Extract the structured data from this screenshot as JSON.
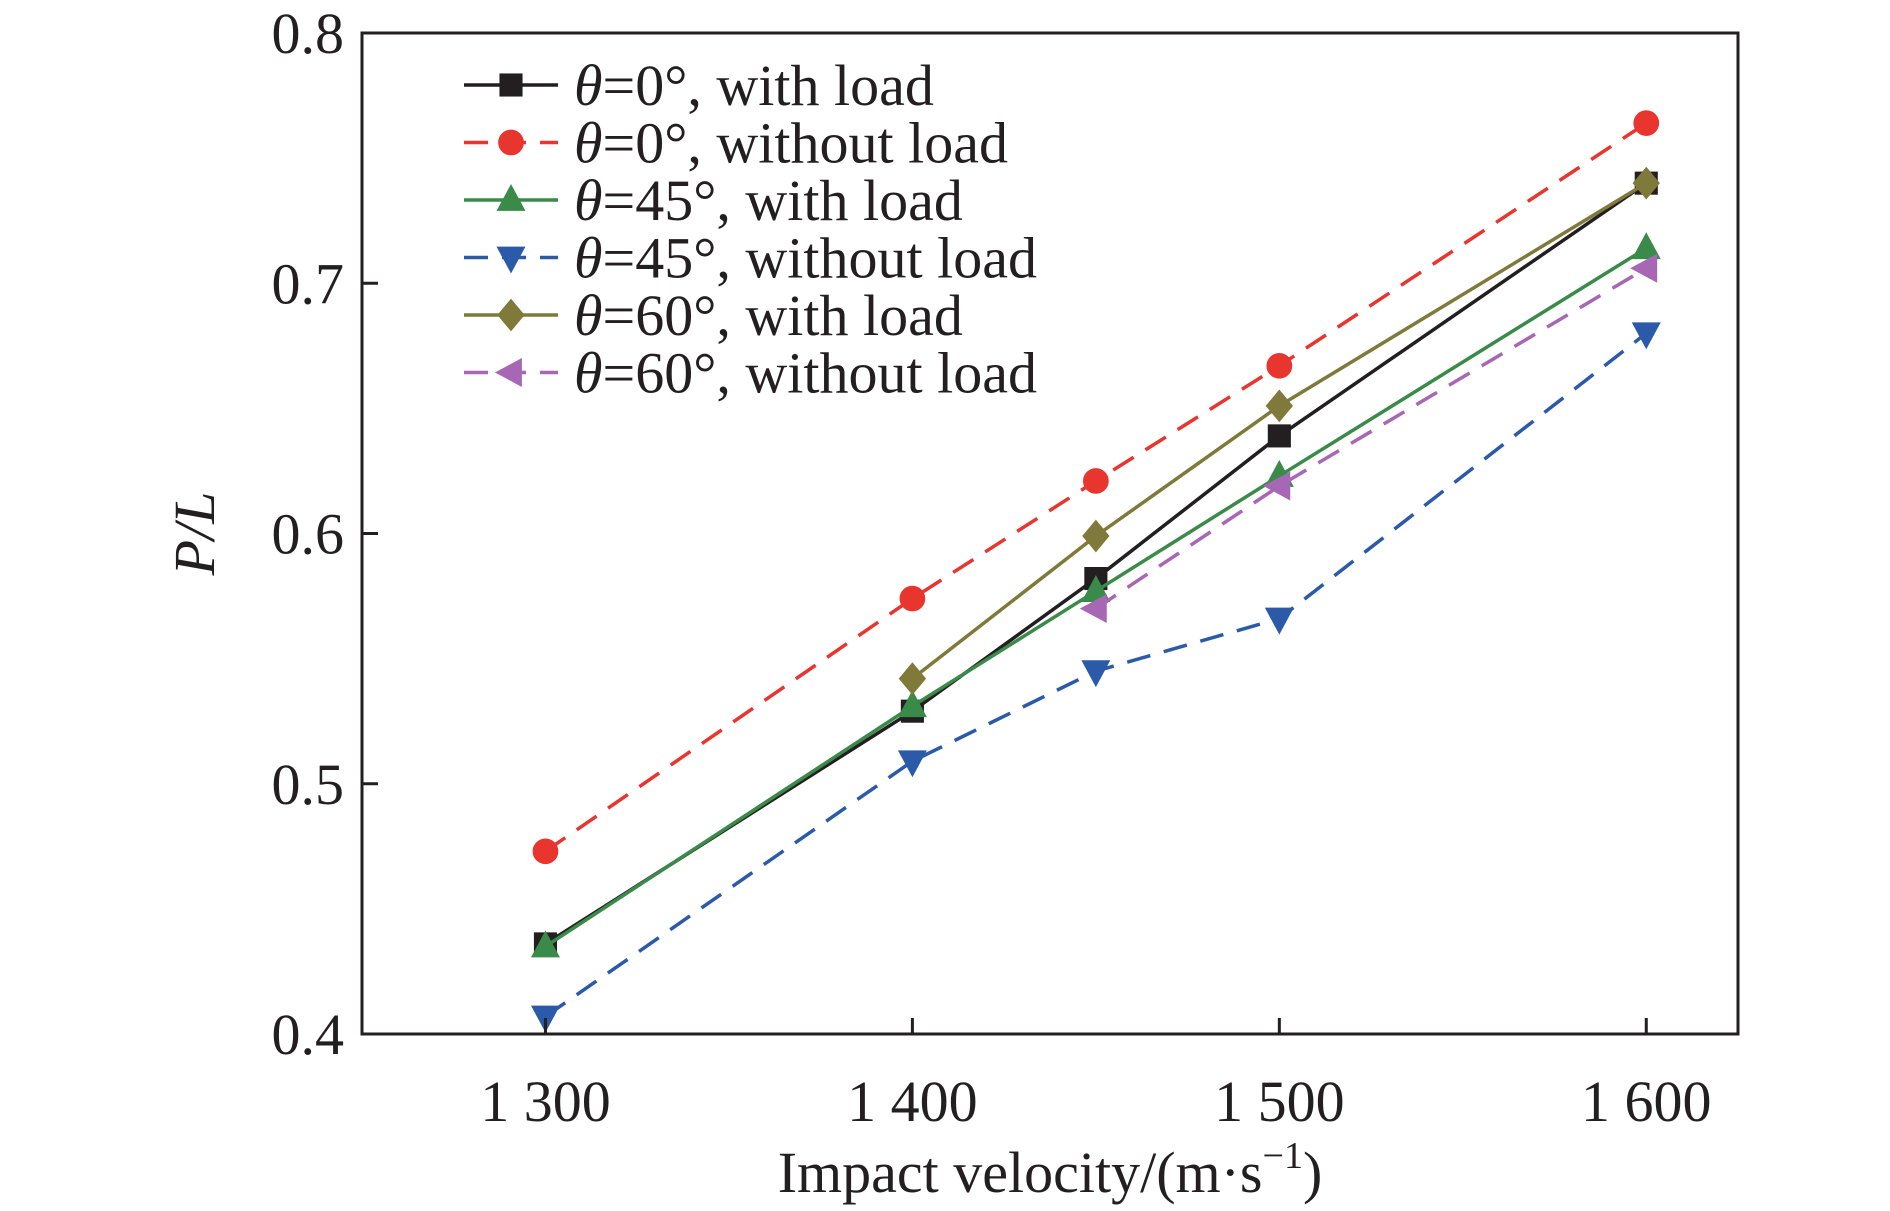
{
  "chart_data": {
    "type": "line",
    "title": "",
    "xlabel": "Impact velocity/(m·s",
    "xlabel_superscript": "−1",
    "xlabel_suffix": ")",
    "ylabel": "P/L",
    "x": [
      1300,
      1400,
      1450,
      1500,
      1600
    ],
    "xlim": [
      1250,
      1625
    ],
    "ylim": [
      0.4,
      0.8
    ],
    "xticks": [
      1300,
      1400,
      1500,
      1600
    ],
    "xtick_labels": [
      "1 300",
      "1 400",
      "1 500",
      "1 600"
    ],
    "yticks": [
      0.4,
      0.5,
      0.6,
      0.7,
      0.8
    ],
    "ytick_labels": [
      "0.4",
      "0.5",
      "0.6",
      "0.7",
      "0.8"
    ],
    "grid": false,
    "legend_position": "top-left",
    "series": [
      {
        "theta": "θ",
        "name": "=0°, with load",
        "color": "#231f20",
        "dash": "solid",
        "marker": "square",
        "values": [
          0.436,
          0.529,
          0.582,
          0.639,
          0.74
        ]
      },
      {
        "theta": "θ",
        "name": "=0°, without load",
        "color": "#e8352e",
        "dash": "dashed",
        "marker": "circle",
        "values": [
          0.473,
          0.574,
          0.621,
          0.667,
          0.764
        ]
      },
      {
        "theta": "θ",
        "name": "=45°, with load",
        "color": "#3a8a4a",
        "dash": "solid",
        "marker": "triangle-up",
        "values": [
          0.435,
          0.531,
          0.577,
          0.623,
          0.714
        ]
      },
      {
        "theta": "θ",
        "name": "=45°, without load",
        "color": "#2a5aa8",
        "dash": "dashed",
        "marker": "triangle-down",
        "values": [
          0.407,
          0.509,
          0.545,
          0.566,
          0.68
        ]
      },
      {
        "theta": "θ",
        "name": "=60°, with load",
        "color": "#7f7a3a",
        "dash": "solid",
        "marker": "diamond",
        "values": [
          null,
          0.542,
          0.599,
          0.651,
          0.74
        ]
      },
      {
        "theta": "θ",
        "name": "=60°, without load",
        "color": "#a867b5",
        "dash": "dashed",
        "marker": "triangle-left",
        "values": [
          null,
          null,
          0.57,
          0.619,
          0.706
        ]
      }
    ]
  }
}
